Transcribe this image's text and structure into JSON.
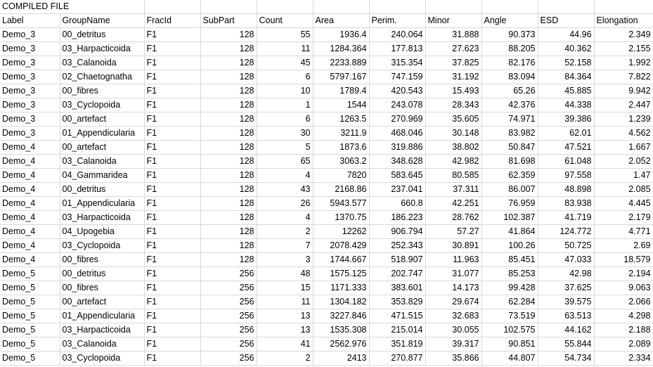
{
  "title": "COMPILED FILE",
  "columns": [
    "Label",
    "GroupName",
    "FracId",
    "SubPart",
    "Count",
    "Area",
    "Perim.",
    "Minor",
    "Angle",
    "ESD",
    "Elongation"
  ],
  "rows": [
    [
      "Demo_3",
      "00_detritus",
      "F1",
      "128",
      "55",
      "1936.4",
      "240.064",
      "31.888",
      "90.373",
      "44.96",
      "2.349"
    ],
    [
      "Demo_3",
      "03_Harpacticoida",
      "F1",
      "128",
      "11",
      "1284.364",
      "177.813",
      "27.623",
      "88.205",
      "40.362",
      "2.155"
    ],
    [
      "Demo_3",
      "03_Calanoida",
      "F1",
      "128",
      "45",
      "2233.889",
      "315.354",
      "37.825",
      "82.176",
      "52.158",
      "1.992"
    ],
    [
      "Demo_3",
      "02_Chaetognatha",
      "F1",
      "128",
      "6",
      "5797.167",
      "747.159",
      "31.192",
      "83.094",
      "84.364",
      "7.822"
    ],
    [
      "Demo_3",
      "00_fibres",
      "F1",
      "128",
      "10",
      "1789.4",
      "420.543",
      "15.493",
      "65.26",
      "45.885",
      "9.942"
    ],
    [
      "Demo_3",
      "03_Cyclopoida",
      "F1",
      "128",
      "1",
      "1544",
      "243.078",
      "28.343",
      "42.376",
      "44.338",
      "2.447"
    ],
    [
      "Demo_3",
      "00_artefact",
      "F1",
      "128",
      "6",
      "1263.5",
      "270.969",
      "35.605",
      "74.971",
      "39.386",
      "1.239"
    ],
    [
      "Demo_3",
      "01_Appendicularia",
      "F1",
      "128",
      "30",
      "3211.9",
      "468.046",
      "30.148",
      "83.982",
      "62.01",
      "4.562"
    ],
    [
      "Demo_4",
      "00_artefact",
      "F1",
      "128",
      "5",
      "1873.6",
      "319.886",
      "38.802",
      "50.847",
      "47.521",
      "1.667"
    ],
    [
      "Demo_4",
      "03_Calanoida",
      "F1",
      "128",
      "65",
      "3063.2",
      "348.628",
      "42.982",
      "81.698",
      "61.048",
      "2.052"
    ],
    [
      "Demo_4",
      "04_Gammaridea",
      "F1",
      "128",
      "4",
      "7820",
      "583.645",
      "80.585",
      "62.359",
      "97.558",
      "1.47"
    ],
    [
      "Demo_4",
      "00_detritus",
      "F1",
      "128",
      "43",
      "2168.86",
      "237.041",
      "37.311",
      "86.007",
      "48.898",
      "2.085"
    ],
    [
      "Demo_4",
      "01_Appendicularia",
      "F1",
      "128",
      "26",
      "5943.577",
      "660.8",
      "42.251",
      "76.959",
      "83.938",
      "4.445"
    ],
    [
      "Demo_4",
      "03_Harpacticoida",
      "F1",
      "128",
      "4",
      "1370.75",
      "186.223",
      "28.762",
      "102.387",
      "41.719",
      "2.179"
    ],
    [
      "Demo_4",
      "04_Upogebia",
      "F1",
      "128",
      "2",
      "12262",
      "906.794",
      "57.27",
      "41.864",
      "124.772",
      "4.771"
    ],
    [
      "Demo_4",
      "03_Cyclopoida",
      "F1",
      "128",
      "7",
      "2078.429",
      "252.343",
      "30.891",
      "100.26",
      "50.725",
      "2.69"
    ],
    [
      "Demo_4",
      "00_fibres",
      "F1",
      "128",
      "3",
      "1744.667",
      "518.907",
      "11.963",
      "85.451",
      "47.033",
      "18.579"
    ],
    [
      "Demo_5",
      "00_detritus",
      "F1",
      "256",
      "48",
      "1575.125",
      "202.747",
      "31.077",
      "85.253",
      "42.98",
      "2.194"
    ],
    [
      "Demo_5",
      "00_fibres",
      "F1",
      "256",
      "15",
      "1171.333",
      "383.601",
      "14.173",
      "99.428",
      "37.625",
      "9.063"
    ],
    [
      "Demo_5",
      "00_artefact",
      "F1",
      "256",
      "11",
      "1304.182",
      "353.829",
      "29.674",
      "62.284",
      "39.575",
      "2.066"
    ],
    [
      "Demo_5",
      "01_Appendicularia",
      "F1",
      "256",
      "13",
      "3227.846",
      "471.515",
      "32.683",
      "73.519",
      "63.513",
      "4.298"
    ],
    [
      "Demo_5",
      "03_Harpacticoida",
      "F1",
      "256",
      "13",
      "1535.308",
      "215.014",
      "30.055",
      "102.575",
      "44.162",
      "2.188"
    ],
    [
      "Demo_5",
      "03_Calanoida",
      "F1",
      "256",
      "41",
      "2562.976",
      "351.819",
      "39.317",
      "90.851",
      "55.844",
      "2.089"
    ],
    [
      "Demo_5",
      "03_Cyclopoida",
      "F1",
      "256",
      "2",
      "2413",
      "270.877",
      "35.866",
      "44.807",
      "54.734",
      "2.334"
    ]
  ]
}
